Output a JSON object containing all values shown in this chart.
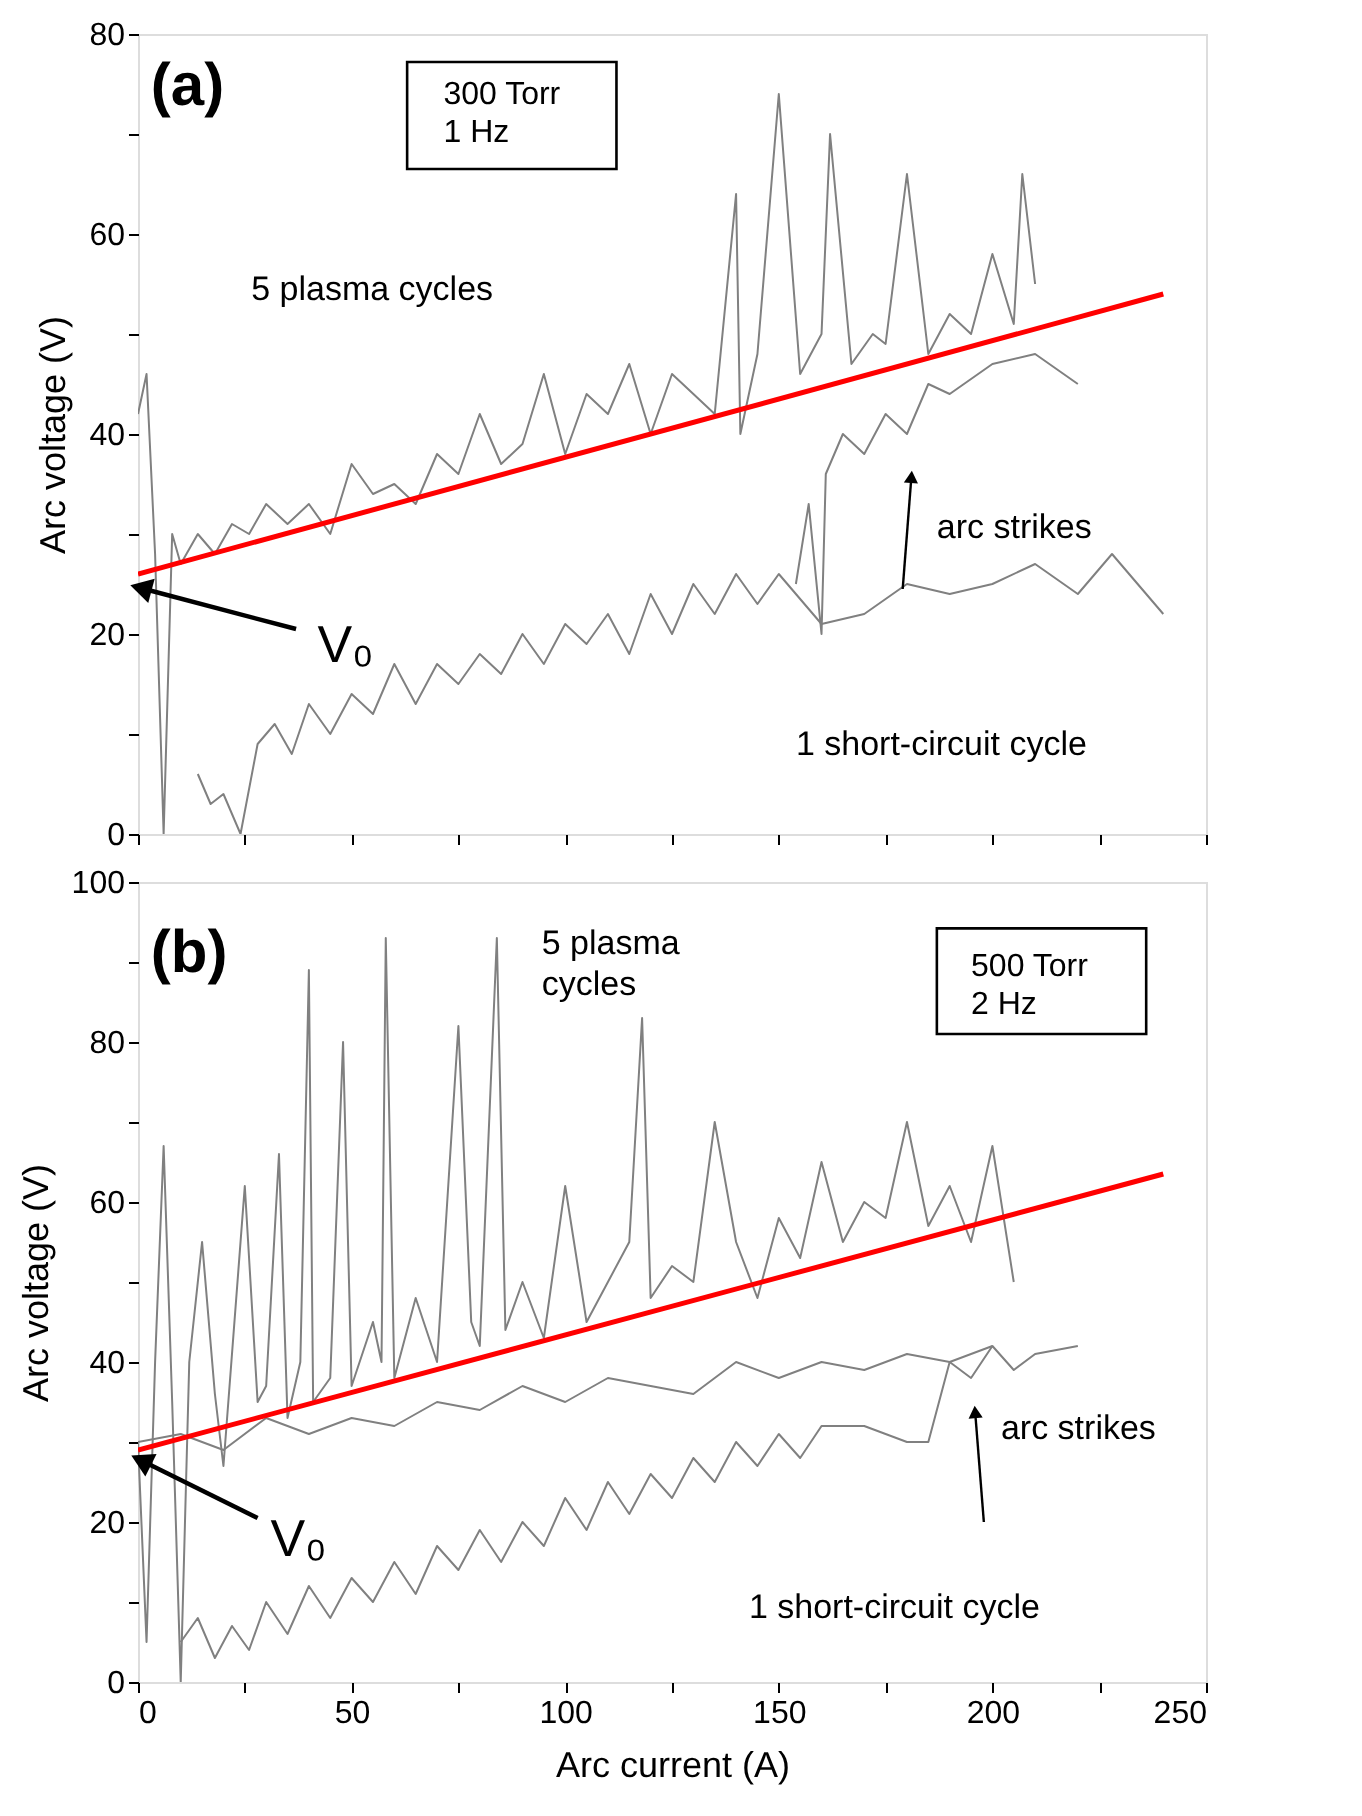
{
  "chart_data": [
    {
      "type": "line",
      "ylabel": "Arc voltage (V)",
      "xlim": [
        0,
        250
      ],
      "ylim": [
        0,
        80
      ],
      "tick_labels": "y",
      "xticks": [
        0,
        {
          "value": 25,
          "label": null
        },
        50,
        {
          "value": 75,
          "label": null
        },
        100,
        {
          "value": 125,
          "label": null
        },
        150,
        {
          "value": 175,
          "label": null
        },
        200,
        {
          "value": 225,
          "label": null
        },
        250
      ],
      "yticks": [
        0,
        {
          "value": 10,
          "label": null
        },
        20,
        {
          "value": 30,
          "label": null
        },
        40,
        {
          "value": 50,
          "label": null
        },
        60,
        {
          "value": 70,
          "label": null
        },
        80
      ],
      "annotations": [
        "(a)",
        "300 Torr\n1 Hz",
        "5 plasma cycles",
        "arc strikes",
        "1 short-circuit cycle",
        {
          "text": "V₀",
          "x": 0,
          "y": 26
        }
      ],
      "series": [
        {
          "color": "#808080",
          "x": [
            0,
            2,
            4,
            6,
            8,
            10,
            14,
            18,
            22,
            26,
            30,
            35,
            40,
            45,
            50,
            55,
            60,
            65,
            70,
            75,
            80,
            85,
            90,
            95,
            100,
            105,
            110,
            115,
            120,
            125,
            130,
            135,
            140,
            141,
            145,
            150,
            155,
            160,
            162,
            167,
            172,
            175,
            180,
            185,
            190,
            195,
            200,
            205,
            207,
            210
          ],
          "values": [
            42,
            46,
            28,
            0,
            30,
            27,
            30,
            28,
            31,
            30,
            33,
            31,
            33,
            30,
            37,
            34,
            35,
            33,
            38,
            36,
            42,
            37,
            39,
            46,
            38,
            44,
            42,
            47,
            40,
            46,
            44,
            42,
            64,
            40,
            48,
            74,
            46,
            50,
            70,
            47,
            50,
            49,
            66,
            48,
            52,
            50,
            58,
            51,
            66,
            55
          ]
        },
        {
          "color": "#808080",
          "x": [
            14,
            17,
            20,
            24,
            28,
            32,
            36,
            40,
            45,
            50,
            55,
            60,
            65,
            70,
            75,
            80,
            85,
            90,
            95,
            100,
            105,
            110,
            115,
            120,
            125,
            130,
            135,
            140,
            145,
            150,
            160,
            170,
            180,
            190,
            200,
            210,
            220,
            228,
            240
          ],
          "values": [
            6,
            3,
            4,
            0,
            9,
            11,
            8,
            13,
            10,
            14,
            12,
            17,
            13,
            17,
            15,
            18,
            16,
            20,
            17,
            21,
            19,
            22,
            18,
            24,
            20,
            25,
            22,
            26,
            23,
            26,
            21,
            22,
            25,
            24,
            25,
            27,
            24,
            28,
            22
          ]
        },
        {
          "color": "#808080",
          "x": [
            154,
            157,
            160,
            161,
            165,
            170,
            175,
            180,
            185,
            190,
            200,
            210,
            220
          ],
          "values": [
            25,
            33,
            20,
            36,
            40,
            38,
            42,
            40,
            45,
            44,
            47,
            48,
            45
          ]
        },
        {
          "color": "#ff0000",
          "x": [
            0,
            240
          ],
          "values": [
            26,
            54
          ]
        }
      ]
    },
    {
      "type": "line",
      "xlabel": "Arc current (A)",
      "ylabel": "Arc voltage (V)",
      "xlim": [
        0,
        250
      ],
      "ylim": [
        0,
        100
      ],
      "xticks": [
        0,
        {
          "value": 25,
          "label": null
        },
        50,
        {
          "value": 75,
          "label": null
        },
        100,
        {
          "value": 125,
          "label": null
        },
        150,
        {
          "value": 175,
          "label": null
        },
        200,
        {
          "value": 225,
          "label": null
        },
        250
      ],
      "yticks": [
        0,
        {
          "value": 10,
          "label": null
        },
        20,
        {
          "value": 30,
          "label": null
        },
        40,
        {
          "value": 50,
          "label": null
        },
        60,
        {
          "value": 70,
          "label": null
        },
        80,
        {
          "value": 90,
          "label": null
        },
        100
      ],
      "annotations": [
        "(b)",
        "500 Torr\n2 Hz",
        "5 plasma\ncycles",
        "arc strikes",
        "1 short-circuit cycle",
        {
          "text": "V₀",
          "x": 0,
          "y": 29
        }
      ],
      "series": [
        {
          "color": "#808080",
          "x": [
            0,
            2,
            4,
            6,
            8,
            10,
            12,
            15,
            18,
            20,
            25,
            28,
            30,
            33,
            35,
            38,
            40,
            41,
            45,
            48,
            50,
            55,
            57,
            58,
            60,
            65,
            70,
            75,
            78,
            80,
            84,
            86,
            90,
            95,
            100,
            105,
            110,
            115,
            118,
            120,
            125,
            130,
            135,
            140,
            145,
            150,
            155,
            160,
            165,
            170,
            175,
            180,
            185,
            190,
            195,
            200,
            205
          ],
          "values": [
            30,
            5,
            40,
            67,
            35,
            0,
            40,
            55,
            36,
            27,
            62,
            35,
            37,
            66,
            33,
            40,
            89,
            35,
            38,
            80,
            37,
            45,
            40,
            93,
            38,
            48,
            40,
            82,
            45,
            42,
            93,
            44,
            50,
            43,
            62,
            45,
            50,
            55,
            83,
            48,
            52,
            50,
            70,
            55,
            48,
            58,
            53,
            65,
            55,
            60,
            58,
            70,
            57,
            62,
            55,
            67,
            50
          ]
        },
        {
          "color": "#808080",
          "x": [
            0,
            10,
            20,
            30,
            40,
            50,
            60,
            70,
            80,
            90,
            100,
            110,
            120,
            130,
            140,
            150,
            160,
            170,
            180,
            190,
            200
          ],
          "values": [
            30,
            31,
            29,
            33,
            31,
            33,
            32,
            35,
            34,
            37,
            35,
            38,
            37,
            36,
            40,
            38,
            40,
            39,
            41,
            40,
            42
          ]
        },
        {
          "color": "#808080",
          "x": [
            10,
            14,
            18,
            22,
            26,
            30,
            35,
            40,
            45,
            50,
            55,
            60,
            65,
            70,
            75,
            80,
            85,
            90,
            95,
            100,
            105,
            110,
            115,
            120,
            125,
            130,
            135,
            140,
            145,
            150,
            155,
            160,
            170,
            180,
            185,
            190,
            195,
            200,
            205,
            210,
            220
          ],
          "values": [
            5,
            8,
            3,
            7,
            4,
            10,
            6,
            12,
            8,
            13,
            10,
            15,
            11,
            17,
            14,
            19,
            15,
            20,
            17,
            23,
            19,
            25,
            21,
            26,
            23,
            28,
            25,
            30,
            27,
            31,
            28,
            32,
            32,
            30,
            30,
            40,
            38,
            42,
            39,
            41,
            42
          ]
        },
        {
          "color": "#ff0000",
          "x": [
            0,
            240
          ],
          "values": [
            29,
            63.5
          ]
        }
      ]
    }
  ]
}
